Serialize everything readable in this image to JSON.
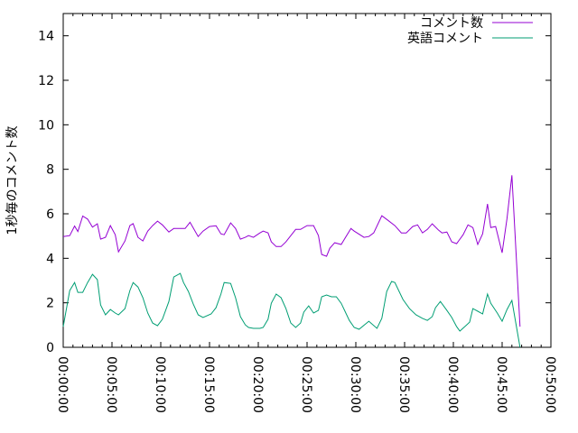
{
  "chart_data": {
    "type": "line",
    "title": "",
    "xlabel": "",
    "ylabel": "1秒毎のコメント数",
    "xlim": [
      "00:00:00",
      "00:50:00"
    ],
    "ylim": [
      0,
      15
    ],
    "x_ticks": [
      "00:00:00",
      "00:05:00",
      "00:10:00",
      "00:15:00",
      "00:20:00",
      "00:25:00",
      "00:30:00",
      "00:35:00",
      "00:40:00",
      "00:45:00",
      "00:50:00"
    ],
    "y_ticks": [
      0,
      2,
      4,
      6,
      8,
      10,
      12,
      14
    ],
    "grid": false,
    "legend_position": "top-right",
    "series": [
      {
        "name": "コメント数",
        "color": "#9400d3",
        "x": [
          "00:00:00",
          "00:00:40",
          "00:01:10",
          "00:01:30",
          "00:02:00",
          "00:02:30",
          "00:03:00",
          "00:03:30",
          "00:03:50",
          "00:04:20",
          "00:04:50",
          "00:05:20",
          "00:05:40",
          "00:06:20",
          "00:06:50",
          "00:07:10",
          "00:07:40",
          "00:08:10",
          "00:08:40",
          "00:09:10",
          "00:09:40",
          "00:10:10",
          "00:10:50",
          "00:11:20",
          "00:12:30",
          "00:13:00",
          "00:13:50",
          "00:14:20",
          "00:15:00",
          "00:15:40",
          "00:16:10",
          "00:16:30",
          "00:17:10",
          "00:17:40",
          "00:18:10",
          "00:18:40",
          "00:19:00",
          "00:19:30",
          "00:20:10",
          "00:20:30",
          "00:21:00",
          "00:21:20",
          "00:21:50",
          "00:22:20",
          "00:22:50",
          "00:23:50",
          "00:24:20",
          "00:25:00",
          "00:25:40",
          "00:26:10",
          "00:26:30",
          "00:27:00",
          "00:27:20",
          "00:27:50",
          "00:28:30",
          "00:28:50",
          "00:29:30",
          "00:29:50",
          "00:30:50",
          "00:31:20",
          "00:31:50",
          "00:32:40",
          "00:33:10",
          "00:34:00",
          "00:34:40",
          "00:35:10",
          "00:35:50",
          "00:36:20",
          "00:36:50",
          "00:37:20",
          "00:37:50",
          "00:38:30",
          "00:38:50",
          "00:39:20",
          "00:39:50",
          "00:40:20",
          "00:41:00",
          "00:41:30",
          "00:42:00",
          "00:42:30",
          "00:43:00",
          "00:43:30",
          "00:43:50",
          "00:44:20",
          "00:45:00",
          "00:45:30",
          "00:46:00",
          "00:46:50"
        ],
        "y": [
          4.98,
          5.02,
          5.45,
          5.2,
          5.9,
          5.76,
          5.4,
          5.55,
          4.86,
          4.94,
          5.47,
          5.06,
          4.29,
          4.78,
          5.47,
          5.56,
          4.94,
          4.78,
          5.22,
          5.47,
          5.67,
          5.5,
          5.18,
          5.34,
          5.34,
          5.62,
          4.98,
          5.22,
          5.43,
          5.46,
          5.1,
          5.06,
          5.59,
          5.34,
          4.86,
          4.94,
          5.02,
          4.94,
          5.14,
          5.22,
          5.14,
          4.74,
          4.53,
          4.53,
          4.74,
          5.3,
          5.3,
          5.47,
          5.47,
          5.02,
          4.17,
          4.09,
          4.45,
          4.7,
          4.62,
          4.86,
          5.34,
          5.22,
          4.94,
          4.98,
          5.14,
          5.91,
          5.75,
          5.47,
          5.14,
          5.14,
          5.43,
          5.5,
          5.14,
          5.3,
          5.55,
          5.26,
          5.14,
          5.18,
          4.74,
          4.66,
          5.06,
          5.5,
          5.38,
          4.62,
          5.1,
          6.44,
          5.38,
          5.43,
          4.25,
          5.79,
          7.73,
          0.93
        ]
      },
      {
        "name": "英語コメント",
        "color": "#009e73",
        "x": [
          "00:00:00",
          "00:00:40",
          "00:01:10",
          "00:01:30",
          "00:02:00",
          "00:02:30",
          "00:03:00",
          "00:03:30",
          "00:03:50",
          "00:04:20",
          "00:04:50",
          "00:05:20",
          "00:05:40",
          "00:06:20",
          "00:06:50",
          "00:07:10",
          "00:07:40",
          "00:08:10",
          "00:08:40",
          "00:09:10",
          "00:09:40",
          "00:10:10",
          "00:10:50",
          "00:11:20",
          "00:12:00",
          "00:12:20",
          "00:12:50",
          "00:13:20",
          "00:13:50",
          "00:14:20",
          "00:15:10",
          "00:15:40",
          "00:16:10",
          "00:16:30",
          "00:17:10",
          "00:17:40",
          "00:18:10",
          "00:18:40",
          "00:19:00",
          "00:19:30",
          "00:20:10",
          "00:20:30",
          "00:21:00",
          "00:21:20",
          "00:21:50",
          "00:22:20",
          "00:22:50",
          "00:23:20",
          "00:23:50",
          "00:24:20",
          "00:24:40",
          "00:25:10",
          "00:25:40",
          "00:26:10",
          "00:26:30",
          "00:27:00",
          "00:27:30",
          "00:28:00",
          "00:28:30",
          "00:29:20",
          "00:29:50",
          "00:30:20",
          "00:31:20",
          "00:32:10",
          "00:32:40",
          "00:33:10",
          "00:33:40",
          "00:34:00",
          "00:34:50",
          "00:35:30",
          "00:36:10",
          "00:36:50",
          "00:37:20",
          "00:37:50",
          "00:38:10",
          "00:38:40",
          "00:39:20",
          "00:39:50",
          "00:40:20",
          "00:40:40",
          "00:41:10",
          "00:41:40",
          "00:42:00",
          "00:42:30",
          "00:43:00",
          "00:43:30",
          "00:43:50",
          "00:44:30",
          "00:45:00",
          "00:45:30",
          "00:46:00",
          "00:46:50"
        ],
        "y": [
          0.93,
          2.55,
          2.91,
          2.47,
          2.47,
          2.91,
          3.28,
          3.04,
          1.9,
          1.46,
          1.7,
          1.54,
          1.46,
          1.74,
          2.55,
          2.91,
          2.71,
          2.23,
          1.54,
          1.09,
          0.97,
          1.26,
          2.06,
          3.16,
          3.32,
          2.91,
          2.51,
          1.94,
          1.46,
          1.34,
          1.5,
          1.78,
          2.39,
          2.91,
          2.87,
          2.23,
          1.38,
          1.01,
          0.89,
          0.85,
          0.85,
          0.89,
          1.26,
          1.98,
          2.39,
          2.23,
          1.74,
          1.09,
          0.89,
          1.09,
          1.58,
          1.86,
          1.54,
          1.66,
          2.27,
          2.35,
          2.27,
          2.27,
          1.98,
          1.21,
          0.89,
          0.81,
          1.17,
          0.85,
          1.3,
          2.51,
          2.96,
          2.91,
          2.15,
          1.74,
          1.46,
          1.3,
          1.21,
          1.38,
          1.78,
          2.06,
          1.66,
          1.34,
          0.93,
          0.73,
          0.93,
          1.13,
          1.74,
          1.62,
          1.5,
          2.39,
          1.98,
          1.54,
          1.17,
          1.7,
          2.11,
          0
        ]
      }
    ]
  }
}
